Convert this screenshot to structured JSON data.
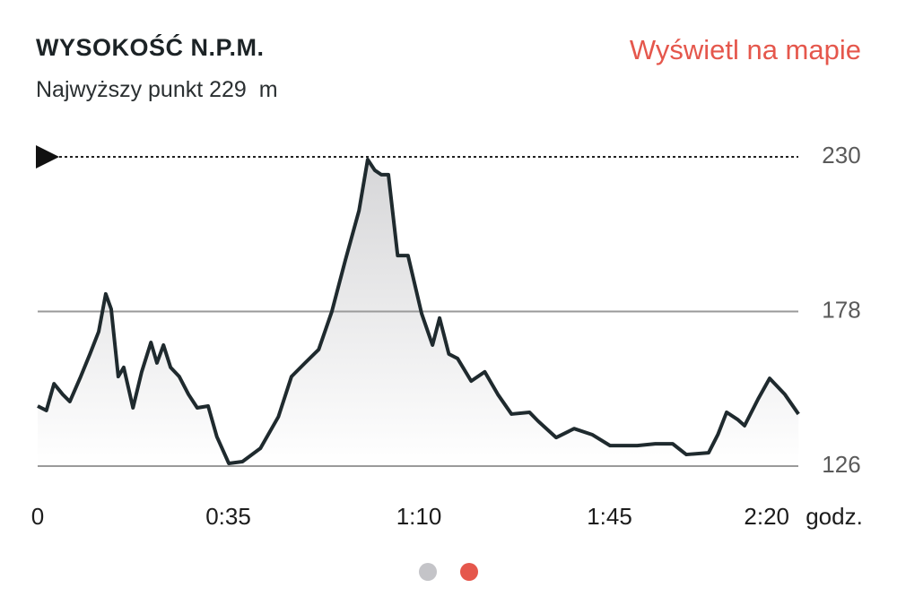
{
  "header": {
    "title": "WYSOKOŚĆ N.P.M.",
    "subtitle_label": "Najwyższy punkt",
    "max_value": 229,
    "max_unit": "m",
    "map_link": "Wyświetl na mapie"
  },
  "chart_data": {
    "type": "line",
    "color": "#1f2a2e",
    "x": [
      0,
      1.6,
      3.0,
      4.6,
      5.9,
      7.9,
      9.6,
      11.2,
      12.5,
      13.5,
      14.8,
      15.8,
      17.5,
      19.1,
      20.8,
      21.9,
      23.1,
      24.4,
      26.0,
      27.7,
      29.3,
      31.3,
      32.9,
      35.1,
      37.6,
      40.9,
      44.2,
      46.6,
      49.1,
      51.6,
      54.0,
      56.5,
      59.0,
      60.6,
      61.9,
      63.1,
      64.4,
      66.1,
      68.0,
      70.5,
      72.5,
      73.8,
      75.5,
      77.1,
      79.6,
      82.1,
      84.5,
      87.0,
      90.3,
      91.9,
      95.2,
      98.5,
      101.8,
      105.1,
      110.1,
      113.4,
      116.6,
      119.1,
      123.2,
      124.9,
      126.5,
      128.5,
      129.8,
      132.3,
      134.4,
      137.2,
      139.7
    ],
    "values": [
      146.2,
      144.7,
      153.7,
      150.1,
      147.7,
      156.1,
      163.7,
      171.2,
      183.9,
      178.8,
      156.1,
      159.2,
      145.6,
      157.7,
      167.6,
      160.7,
      166.7,
      159.2,
      156.1,
      150.1,
      145.6,
      146.2,
      135.9,
      126.9,
      127.5,
      132.0,
      142.6,
      156.1,
      160.7,
      165.2,
      177.9,
      195.3,
      211.9,
      229.1,
      225.5,
      224.0,
      224.0,
      196.8,
      196.8,
      177.3,
      166.7,
      175.8,
      163.7,
      162.2,
      154.6,
      157.7,
      150.1,
      143.5,
      144.1,
      141.1,
      135.6,
      138.6,
      136.6,
      132.9,
      132.9,
      133.5,
      133.5,
      129.9,
      130.5,
      136.6,
      144.1,
      141.7,
      139.6,
      148.6,
      155.5,
      150.1,
      143.5
    ],
    "xlim": [
      0,
      140
    ],
    "xticks": [
      0,
      {
        "value": 35,
        "label": "0:35"
      },
      {
        "value": 70,
        "label": "1:10"
      },
      {
        "value": 105,
        "label": "1:45"
      },
      {
        "value": 140,
        "label": "2:20"
      }
    ],
    "x_unit": "godz.",
    "ylim": [
      126,
      230
    ],
    "yticks": [
      126,
      178,
      230
    ],
    "grid": true
  }
}
